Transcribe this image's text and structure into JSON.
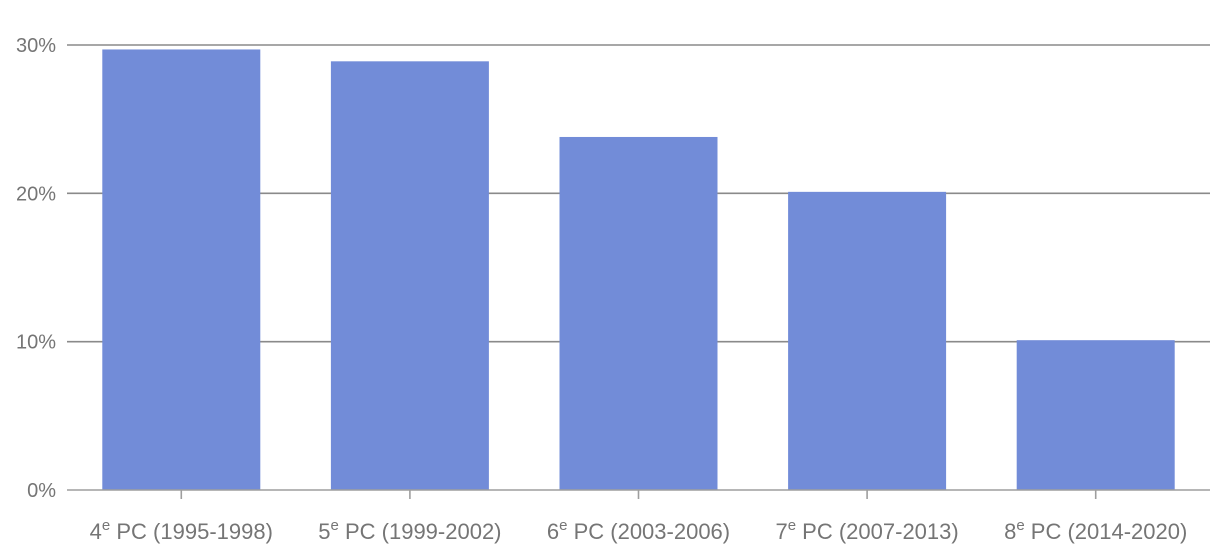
{
  "chart_data": {
    "type": "bar",
    "categories": [
      {
        "ordinal": "4",
        "sup": "e",
        "rest": " PC (1995-1998)"
      },
      {
        "ordinal": "5",
        "sup": "e",
        "rest": " PC (1999-2002)"
      },
      {
        "ordinal": "6",
        "sup": "e",
        "rest": " PC (2003-2006)"
      },
      {
        "ordinal": "7",
        "sup": "e",
        "rest": " PC (2007-2013)"
      },
      {
        "ordinal": "8",
        "sup": "e",
        "rest": " PC (2014-2020)"
      }
    ],
    "values": [
      29.7,
      28.9,
      23.8,
      20.1,
      10.1
    ],
    "ylim": [
      0,
      30
    ],
    "yticks": [
      0,
      10,
      20,
      30
    ],
    "ytick_labels": [
      "0%",
      "10%",
      "20%",
      "30%"
    ],
    "grid": true,
    "colors": {
      "bar": "#728cd8",
      "grid": "#8a8a8a",
      "text": "#757575"
    }
  }
}
